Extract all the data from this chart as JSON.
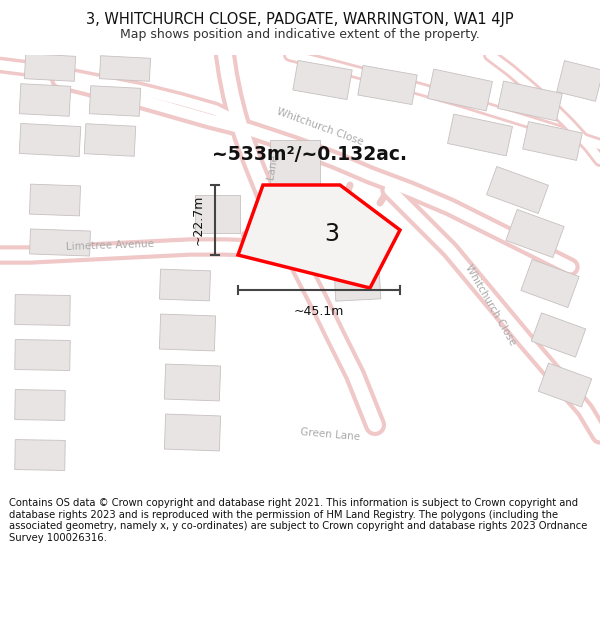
{
  "title_line1": "3, WHITCHURCH CLOSE, PADGATE, WARRINGTON, WA1 4JP",
  "title_line2": "Map shows position and indicative extent of the property.",
  "footer_text": "Contains OS data © Crown copyright and database right 2021. This information is subject to Crown copyright and database rights 2023 and is reproduced with the permission of HM Land Registry. The polygons (including the associated geometry, namely x, y co-ordinates) are subject to Crown copyright and database rights 2023 Ordnance Survey 100026316.",
  "background_color": "#ffffff",
  "map_bg": "#ffffff",
  "plot_color": "#ff0000",
  "plot_fill": "#f5f2f2",
  "plot_number": "3",
  "area_text": "~533m²/~0.132ac.",
  "width_label": "~45.1m",
  "height_label": "~22.7m",
  "road_outline_color": "#f0c8c8",
  "road_fill_color": "#ffffff",
  "building_fill": "#e8e4e4",
  "building_edge": "#c8c0c0",
  "road_label_color": "#aaaaaa",
  "title_fontsize": 10.5,
  "subtitle_fontsize": 9,
  "footer_fontsize": 7.2
}
